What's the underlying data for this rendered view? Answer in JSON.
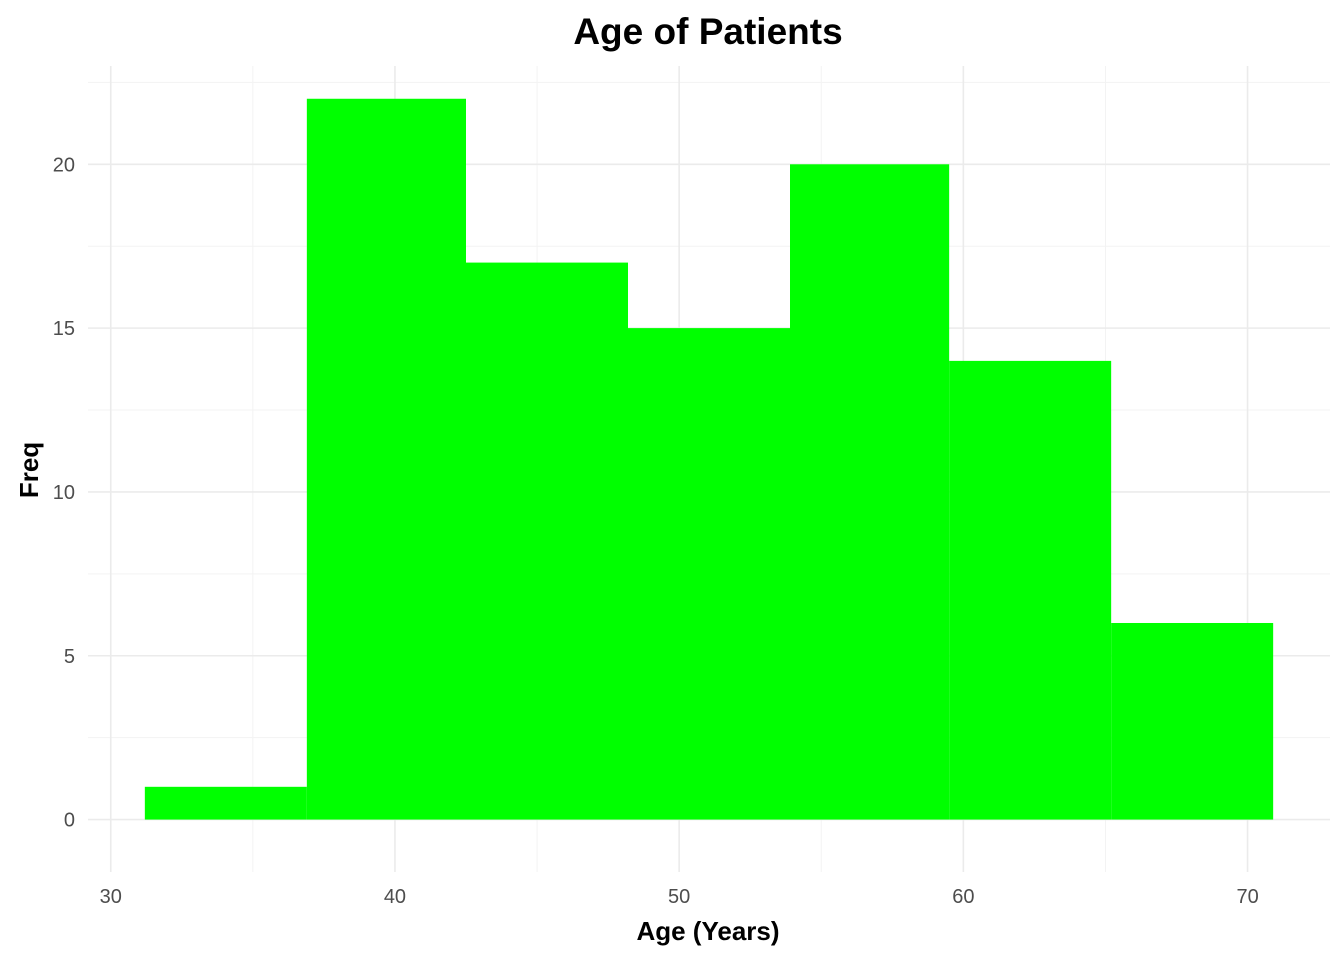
{
  "chart_data": {
    "type": "bar",
    "subtype": "histogram",
    "title": "Age of Patients",
    "xlabel": "Age (Years)",
    "ylabel": "Freq",
    "bins": [
      {
        "x0": 31.2,
        "x1": 36.9,
        "count": 1
      },
      {
        "x0": 36.9,
        "x1": 42.5,
        "count": 22
      },
      {
        "x0": 42.5,
        "x1": 48.2,
        "count": 17
      },
      {
        "x0": 48.2,
        "x1": 53.9,
        "count": 15
      },
      {
        "x0": 53.9,
        "x1": 59.5,
        "count": 20
      },
      {
        "x0": 59.5,
        "x1": 65.2,
        "count": 14
      },
      {
        "x0": 65.2,
        "x1": 70.9,
        "count": 6
      }
    ],
    "xlim": [
      29.2,
      72.9
    ],
    "ylim": [
      -1.6,
      23.0
    ],
    "x_ticks": [
      30,
      40,
      50,
      60,
      70
    ],
    "y_ticks": [
      0,
      5,
      10,
      15,
      20
    ],
    "grid": true,
    "bar_color": "#00FF00"
  }
}
